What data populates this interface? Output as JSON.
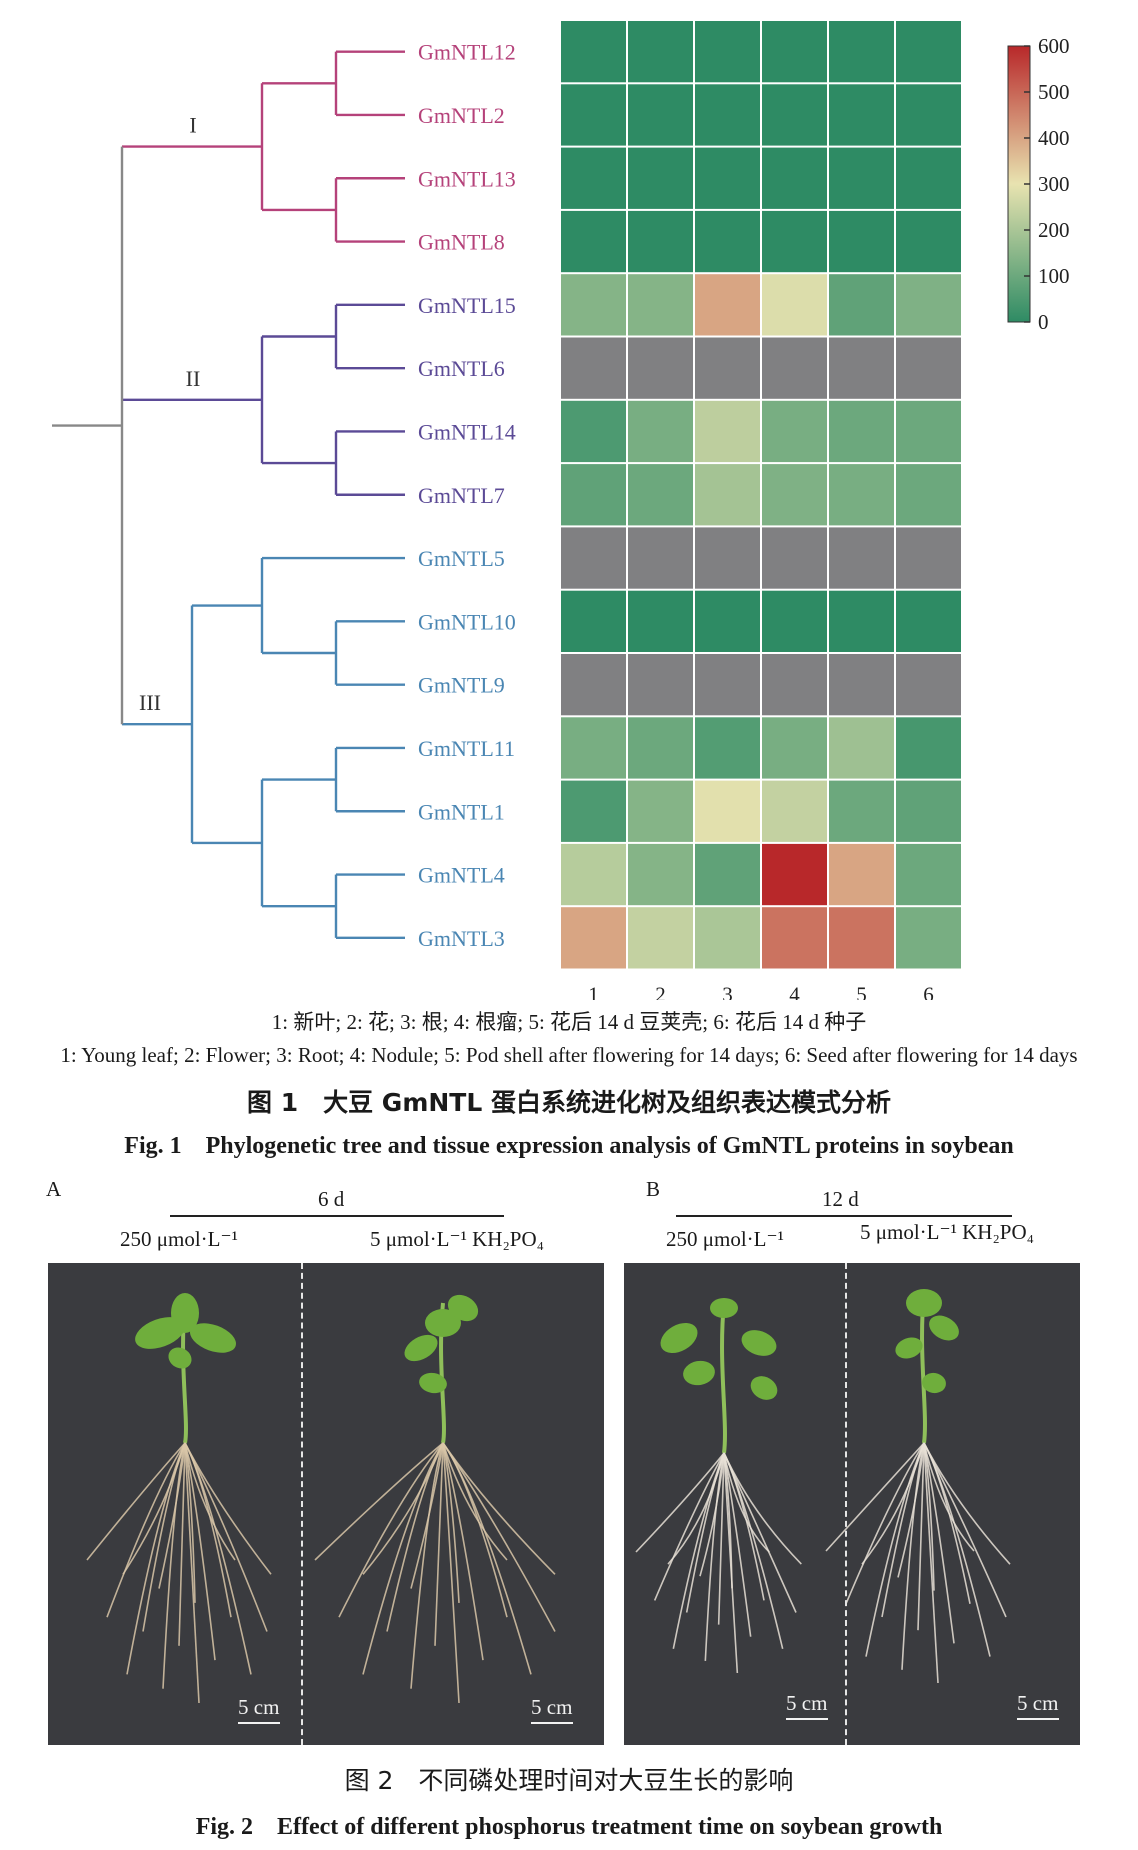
{
  "figure1": {
    "chart_data": {
      "type": "heatmap",
      "columns": [
        "1",
        "2",
        "3",
        "4",
        "5",
        "6"
      ],
      "rows": [
        "GmNTL12",
        "GmNTL2",
        "GmNTL13",
        "GmNTL8",
        "GmNTL15",
        "GmNTL6",
        "GmNTL14",
        "GmNTL7",
        "GmNTL5",
        "GmNTL10",
        "GmNTL9",
        "GmNTL11",
        "GmNTL1",
        "GmNTL4",
        "GmNTL3"
      ],
      "values": [
        [
          0,
          0,
          0,
          0,
          0,
          0
        ],
        [
          0,
          0,
          0,
          0,
          0,
          0
        ],
        [
          0,
          0,
          0,
          0,
          0,
          0
        ],
        [
          0,
          0,
          0,
          0,
          0,
          0
        ],
        [
          140,
          140,
          400,
          280,
          80,
          130
        ],
        [
          null,
          null,
          null,
          null,
          null,
          null
        ],
        [
          50,
          120,
          230,
          120,
          100,
          100
        ],
        [
          80,
          100,
          190,
          130,
          120,
          100
        ],
        [
          null,
          null,
          null,
          null,
          null,
          null
        ],
        [
          0,
          0,
          0,
          0,
          0,
          0
        ],
        [
          null,
          null,
          null,
          null,
          null,
          null
        ],
        [
          120,
          100,
          60,
          120,
          180,
          40
        ],
        [
          50,
          140,
          290,
          240,
          100,
          80
        ],
        [
          220,
          140,
          80,
          600,
          400,
          100
        ],
        [
          400,
          240,
          200,
          480,
          480,
          120
        ]
      ],
      "colorbar": {
        "min": 0,
        "max": 600,
        "ticks": [
          "600",
          "500",
          "400",
          "300",
          "200",
          "100",
          "0"
        ]
      },
      "colors": {
        "low": "#2e8b64",
        "mid": "#e8e3b0",
        "high": "#b8282a",
        "missing": "#808082"
      },
      "clades": [
        {
          "label": "I",
          "members": [
            "GmNTL12",
            "GmNTL2",
            "GmNTL13",
            "GmNTL8"
          ],
          "color": "#b5427a"
        },
        {
          "label": "II",
          "members": [
            "GmNTL15",
            "GmNTL6",
            "GmNTL14",
            "GmNTL7"
          ],
          "color": "#5b4a96"
        },
        {
          "label": "III",
          "members": [
            "GmNTL5",
            "GmNTL10",
            "GmNTL9",
            "GmNTL11",
            "GmNTL1",
            "GmNTL4",
            "GmNTL3"
          ],
          "color": "#4a86b3"
        }
      ],
      "root_color": "#888888"
    },
    "legend_zh": "1: 新叶; 2: 花; 3: 根; 4: 根瘤; 5: 花后 14 d 豆荚壳; 6: 花后 14 d 种子",
    "legend_en": "1: Young leaf; 2: Flower; 3: Root; 4: Nodule; 5: Pod shell after flowering for 14 days; 6: Seed after flowering for 14 days",
    "title_zh": "图 1　大豆 GmNTL 蛋白系统进化树及组织表达模式分析",
    "title_en": "Fig. 1　Phylogenetic tree and tissue expression analysis of GmNTL proteins in soybean"
  },
  "figure2": {
    "panels": [
      {
        "letter": "A",
        "duration": "6 d",
        "left_label": "250 μmol·L⁻¹",
        "right_label": "5 μmol·L⁻¹ KH₂PO₄",
        "scale_bar": "5 cm"
      },
      {
        "letter": "B",
        "duration": "12 d",
        "left_label": "250 μmol·L⁻¹",
        "right_label": "5 μmol·L⁻¹ KH₂PO₄",
        "scale_bar": "5 cm"
      }
    ],
    "title_zh": "图 2　不同磷处理时间对大豆生长的影响",
    "title_en": "Fig. 2　Effect of different phosphorus treatment time on soybean growth"
  }
}
